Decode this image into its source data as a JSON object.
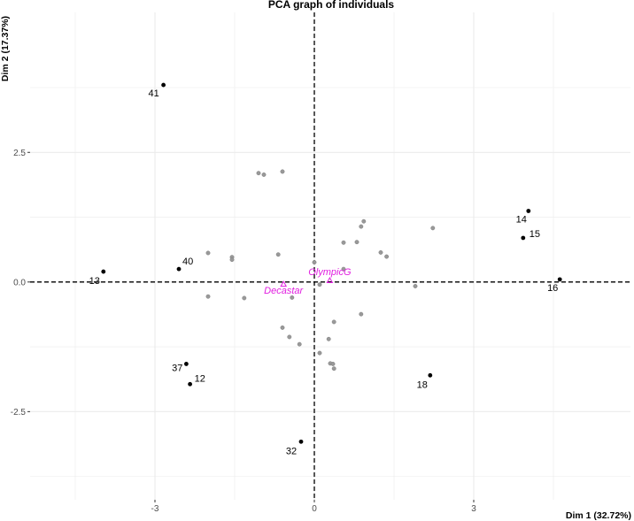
{
  "chart_data": {
    "type": "scatter",
    "title": "PCA graph of individuals",
    "xlabel": "Dim 1 (32.72%)",
    "ylabel": "Dim 2 (17.37%)",
    "xlim": [
      -5.35,
      5.95
    ],
    "ylim": [
      -4.2,
      5.2
    ],
    "x_ticks": [
      -3,
      0,
      3
    ],
    "x_tick_labels": [
      "-3",
      "0",
      "3"
    ],
    "y_ticks": [
      -2.5,
      0,
      2.5
    ],
    "y_tick_labels": [
      "-2.5",
      "0.0",
      "2.5"
    ],
    "grid": true,
    "reference_lines": {
      "x": 0,
      "y": 0
    },
    "labeled_points": [
      {
        "label": "41",
        "x": -2.84,
        "y": 3.8
      },
      {
        "label": "40",
        "x": -2.55,
        "y": 0.25
      },
      {
        "label": "13",
        "x": -3.97,
        "y": 0.2
      },
      {
        "label": "37",
        "x": -2.41,
        "y": -1.58
      },
      {
        "label": "12",
        "x": -2.34,
        "y": -1.97
      },
      {
        "label": "32",
        "x": -0.25,
        "y": -3.08
      },
      {
        "label": "14",
        "x": 4.03,
        "y": 1.37
      },
      {
        "label": "15",
        "x": 3.93,
        "y": 0.85
      },
      {
        "label": "16",
        "x": 4.62,
        "y": 0.05
      },
      {
        "label": "18",
        "x": 2.18,
        "y": -1.8
      }
    ],
    "unlabeled_points": [
      {
        "x": -1.05,
        "y": 2.1
      },
      {
        "x": -0.95,
        "y": 2.07
      },
      {
        "x": -0.6,
        "y": 2.13
      },
      {
        "x": -2.0,
        "y": 0.56
      },
      {
        "x": -1.55,
        "y": 0.48
      },
      {
        "x": -1.55,
        "y": 0.43
      },
      {
        "x": -0.68,
        "y": 0.53
      },
      {
        "x": -2.0,
        "y": -0.28
      },
      {
        "x": -1.32,
        "y": -0.31
      },
      {
        "x": -0.42,
        "y": -0.3
      },
      {
        "x": -0.6,
        "y": -0.88
      },
      {
        "x": -0.47,
        "y": -1.06
      },
      {
        "x": -0.28,
        "y": -1.2
      },
      {
        "x": 0.0,
        "y": 0.38
      },
      {
        "x": 0.1,
        "y": -0.05
      },
      {
        "x": 0.55,
        "y": 0.76
      },
      {
        "x": 0.8,
        "y": 0.77
      },
      {
        "x": 0.88,
        "y": 1.07
      },
      {
        "x": 0.93,
        "y": 1.17
      },
      {
        "x": 1.25,
        "y": 0.57
      },
      {
        "x": 1.36,
        "y": 0.49
      },
      {
        "x": 2.23,
        "y": 1.04
      },
      {
        "x": 0.55,
        "y": 0.25
      },
      {
        "x": 0.37,
        "y": -0.77
      },
      {
        "x": 0.88,
        "y": -0.62
      },
      {
        "x": 0.27,
        "y": -1.1
      },
      {
        "x": 0.1,
        "y": -1.37
      },
      {
        "x": 0.3,
        "y": -1.57
      },
      {
        "x": 0.35,
        "y": -1.58
      },
      {
        "x": 0.37,
        "y": -1.67
      },
      {
        "x": 1.9,
        "y": -0.08
      }
    ],
    "supplementary": [
      {
        "label": "Decastar",
        "x": -0.58,
        "y": -0.04
      },
      {
        "label": "OlympicG",
        "x": 0.29,
        "y": 0.03
      }
    ],
    "colors": {
      "labeled": "#000000",
      "unlabeled": "#999999",
      "supplementary": "#e11fe0",
      "grid": "#ebebeb"
    }
  }
}
